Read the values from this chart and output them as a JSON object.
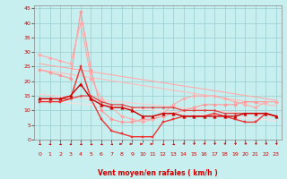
{
  "xlabel": "Vent moyen/en rafales ( km/h )",
  "xlim": [
    -0.5,
    23.5
  ],
  "ylim": [
    0,
    46
  ],
  "yticks": [
    0,
    5,
    10,
    15,
    20,
    25,
    30,
    35,
    40,
    45
  ],
  "xticks": [
    0,
    1,
    2,
    3,
    4,
    5,
    6,
    7,
    8,
    9,
    10,
    11,
    12,
    13,
    14,
    15,
    16,
    17,
    18,
    19,
    20,
    21,
    22,
    23
  ],
  "bg_color": "#c8efef",
  "grid_color": "#99cccc",
  "series": [
    {
      "x": [
        0,
        23
      ],
      "y": [
        26.0,
        13.5
      ],
      "color": "#ffaaaa",
      "marker": "None",
      "markersize": 0,
      "linewidth": 0.8,
      "zorder": 2
    },
    {
      "x": [
        0,
        23
      ],
      "y": [
        24.0,
        11.5
      ],
      "color": "#ffbbbb",
      "marker": "None",
      "markersize": 0,
      "linewidth": 0.8,
      "zorder": 2
    },
    {
      "x": [
        0,
        23
      ],
      "y": [
        15.5,
        8.0
      ],
      "color": "#ffcccc",
      "marker": "None",
      "markersize": 0,
      "linewidth": 0.8,
      "zorder": 2
    },
    {
      "x": [
        0,
        23
      ],
      "y": [
        13.5,
        6.5
      ],
      "color": "#ffdddd",
      "marker": "None",
      "markersize": 0,
      "linewidth": 0.8,
      "zorder": 2
    },
    {
      "x": [
        0,
        1,
        2,
        3,
        4,
        5,
        6,
        7,
        8,
        9,
        10,
        11,
        12,
        13,
        14,
        15,
        16,
        17,
        18,
        19,
        20,
        21,
        22,
        23
      ],
      "y": [
        24,
        23,
        22,
        21,
        44,
        24,
        10,
        7,
        6,
        6,
        7,
        7,
        8,
        9,
        10,
        11,
        12,
        12,
        12,
        12,
        13,
        13,
        13,
        13
      ],
      "color": "#ff9999",
      "marker": "D",
      "markersize": 2.0,
      "linewidth": 0.8,
      "zorder": 3
    },
    {
      "x": [
        0,
        1,
        2,
        3,
        4,
        5,
        6,
        7,
        8,
        9,
        10,
        11,
        12,
        13,
        14,
        15,
        16,
        17,
        18,
        19,
        20,
        21,
        22,
        23
      ],
      "y": [
        29,
        28,
        27,
        26,
        40,
        21,
        14,
        11,
        8,
        7,
        6,
        7,
        9,
        12,
        14,
        15,
        15,
        15,
        14,
        13,
        12,
        11,
        13,
        13
      ],
      "color": "#ffaaaa",
      "marker": "D",
      "markersize": 2.0,
      "linewidth": 0.8,
      "zorder": 3
    },
    {
      "x": [
        0,
        1,
        2,
        3,
        4,
        5,
        6,
        7,
        8,
        9,
        10,
        11,
        12,
        13,
        14,
        15,
        16,
        17,
        18,
        19,
        20,
        21,
        22,
        23
      ],
      "y": [
        14,
        14,
        14,
        15,
        19,
        14,
        12,
        11,
        11,
        10,
        8,
        8,
        9,
        9,
        8,
        8,
        8,
        8,
        8,
        8,
        9,
        9,
        9,
        8
      ],
      "color": "#cc0000",
      "marker": "^",
      "markersize": 2.5,
      "linewidth": 1.0,
      "zorder": 5
    },
    {
      "x": [
        0,
        1,
        2,
        3,
        4,
        5,
        6,
        7,
        8,
        9,
        10,
        11,
        12,
        13,
        14,
        15,
        16,
        17,
        18,
        19,
        20,
        21,
        22,
        23
      ],
      "y": [
        13,
        13,
        13,
        14,
        25,
        14,
        7,
        3,
        2,
        1,
        1,
        1,
        6,
        7,
        8,
        8,
        8,
        9,
        8,
        7,
        6,
        6,
        9,
        8
      ],
      "color": "#ee3333",
      "marker": "s",
      "markersize": 2.0,
      "linewidth": 1.0,
      "zorder": 4
    },
    {
      "x": [
        0,
        1,
        2,
        3,
        4,
        5,
        6,
        7,
        8,
        9,
        10,
        11,
        12,
        13,
        14,
        15,
        16,
        17,
        18,
        19,
        20,
        21,
        22,
        23
      ],
      "y": [
        14,
        14,
        14,
        14,
        15,
        15,
        13,
        12,
        12,
        11,
        11,
        11,
        11,
        11,
        10,
        10,
        10,
        10,
        9,
        9,
        9,
        9,
        9,
        8
      ],
      "color": "#dd4444",
      "marker": "o",
      "markersize": 1.5,
      "linewidth": 0.9,
      "zorder": 4
    }
  ],
  "arrow_color": "#cc0000",
  "arrow_angles": [
    45,
    45,
    45,
    45,
    45,
    45,
    45,
    45,
    90,
    90,
    90,
    90,
    45,
    45,
    135,
    135,
    135,
    135,
    135,
    135,
    135,
    135,
    135,
    135
  ]
}
